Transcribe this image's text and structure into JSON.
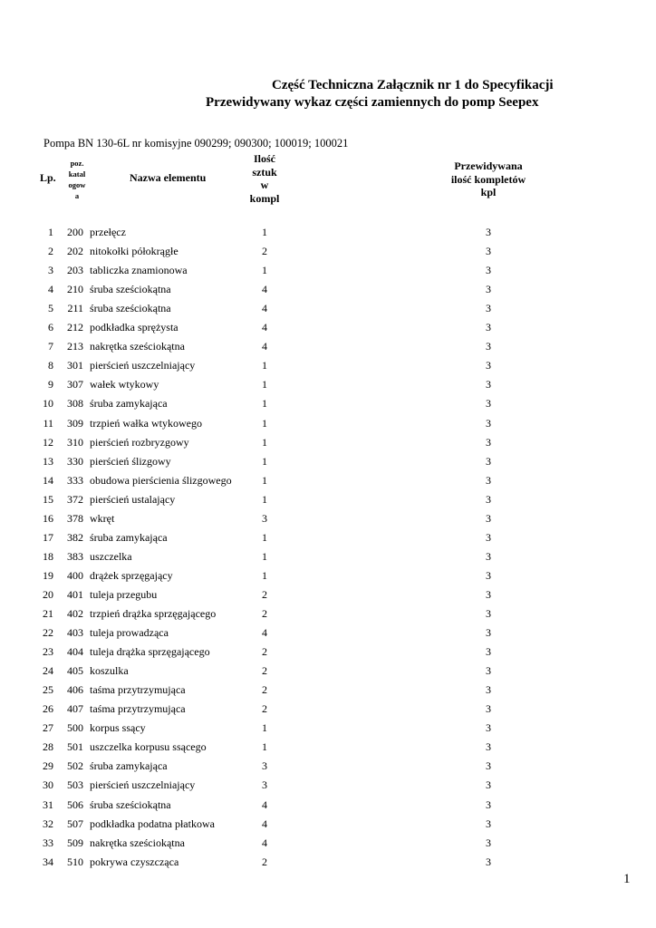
{
  "title_line1": "Część Techniczna Załącznik nr 1 do Specyfikacji",
  "title_line2": "Przewidywany wykaz części zamiennych do  pomp Seepex",
  "pump_info": "Pompa BN 130-6L nr komisyjne 090299; 090300; 100019; 100021",
  "headers": {
    "lp": "Lp.",
    "poz": [
      "poz.",
      "katal",
      "ogow",
      "a"
    ],
    "name": "Nazwa elementu",
    "qty": [
      "Ilość",
      "sztuk",
      "w",
      "kompl"
    ],
    "kpl": [
      "Przewidywana",
      "ilość kompletów",
      "kpl"
    ]
  },
  "rows": [
    {
      "lp": "1",
      "poz": "200",
      "name": "przełęcz",
      "qty": "1",
      "kpl": "3"
    },
    {
      "lp": "2",
      "poz": "202",
      "name": "nitokołki półokrągłe",
      "qty": "2",
      "kpl": "3"
    },
    {
      "lp": "3",
      "poz": "203",
      "name": "tabliczka znamionowa",
      "qty": "1",
      "kpl": "3"
    },
    {
      "lp": "4",
      "poz": "210",
      "name": "śruba sześciokątna",
      "qty": "4",
      "kpl": "3"
    },
    {
      "lp": "5",
      "poz": "211",
      "name": "śruba sześciokątna",
      "qty": "4",
      "kpl": "3"
    },
    {
      "lp": "6",
      "poz": "212",
      "name": "podkładka sprężysta",
      "qty": "4",
      "kpl": "3"
    },
    {
      "lp": "7",
      "poz": "213",
      "name": "nakrętka sześciokątna",
      "qty": "4",
      "kpl": "3"
    },
    {
      "lp": "8",
      "poz": "301",
      "name": "pierścień uszczelniający",
      "qty": "1",
      "kpl": "3"
    },
    {
      "lp": "9",
      "poz": "307",
      "name": "wałek wtykowy",
      "qty": "1",
      "kpl": "3"
    },
    {
      "lp": "10",
      "poz": "308",
      "name": "śruba zamykająca",
      "qty": "1",
      "kpl": "3"
    },
    {
      "lp": "11",
      "poz": "309",
      "name": "trzpień wałka wtykowego",
      "qty": "1",
      "kpl": "3"
    },
    {
      "lp": "12",
      "poz": "310",
      "name": "pierścień rozbryzgowy",
      "qty": "1",
      "kpl": "3"
    },
    {
      "lp": "13",
      "poz": "330",
      "name": "pierścień ślizgowy",
      "qty": "1",
      "kpl": "3"
    },
    {
      "lp": "14",
      "poz": "333",
      "name": "obudowa pierścienia ślizgowego",
      "qty": "1",
      "kpl": "3"
    },
    {
      "lp": "15",
      "poz": "372",
      "name": "pierścień ustalający",
      "qty": "1",
      "kpl": "3"
    },
    {
      "lp": "16",
      "poz": "378",
      "name": "wkręt",
      "qty": "3",
      "kpl": "3"
    },
    {
      "lp": "17",
      "poz": "382",
      "name": "śruba zamykająca",
      "qty": "1",
      "kpl": "3"
    },
    {
      "lp": "18",
      "poz": "383",
      "name": "uszczelka",
      "qty": "1",
      "kpl": "3"
    },
    {
      "lp": "19",
      "poz": "400",
      "name": "drążek sprzęgający",
      "qty": "1",
      "kpl": "3"
    },
    {
      "lp": "20",
      "poz": "401",
      "name": "tuleja przegubu",
      "qty": "2",
      "kpl": "3"
    },
    {
      "lp": "21",
      "poz": "402",
      "name": "trzpień drążka sprzęgającego",
      "qty": "2",
      "kpl": "3"
    },
    {
      "lp": "22",
      "poz": "403",
      "name": "tuleja prowadząca",
      "qty": "4",
      "kpl": "3"
    },
    {
      "lp": "23",
      "poz": "404",
      "name": "tuleja drążka sprzęgającego",
      "qty": "2",
      "kpl": "3"
    },
    {
      "lp": "24",
      "poz": "405",
      "name": "koszulka",
      "qty": "2",
      "kpl": "3"
    },
    {
      "lp": "25",
      "poz": "406",
      "name": "taśma przytrzymująca",
      "qty": "2",
      "kpl": "3"
    },
    {
      "lp": "26",
      "poz": "407",
      "name": "taśma przytrzymująca",
      "qty": "2",
      "kpl": "3"
    },
    {
      "lp": "27",
      "poz": "500",
      "name": "korpus ssący",
      "qty": "1",
      "kpl": "3"
    },
    {
      "lp": "28",
      "poz": "501",
      "name": "uszczelka korpusu ssącego",
      "qty": "1",
      "kpl": "3"
    },
    {
      "lp": "29",
      "poz": "502",
      "name": "śruba zamykająca",
      "qty": "3",
      "kpl": "3"
    },
    {
      "lp": "30",
      "poz": "503",
      "name": "pierścień uszczelniający",
      "qty": "3",
      "kpl": "3"
    },
    {
      "lp": "31",
      "poz": "506",
      "name": "śruba sześciokątna",
      "qty": "4",
      "kpl": "3"
    },
    {
      "lp": "32",
      "poz": "507",
      "name": "podkładka podatna płatkowa",
      "qty": "4",
      "kpl": "3"
    },
    {
      "lp": "33",
      "poz": "509",
      "name": "nakrętka sześciokątna",
      "qty": "4",
      "kpl": "3"
    },
    {
      "lp": "34",
      "poz": "510",
      "name": "pokrywa czyszcząca",
      "qty": "2",
      "kpl": "3"
    }
  ],
  "page_number": "1"
}
